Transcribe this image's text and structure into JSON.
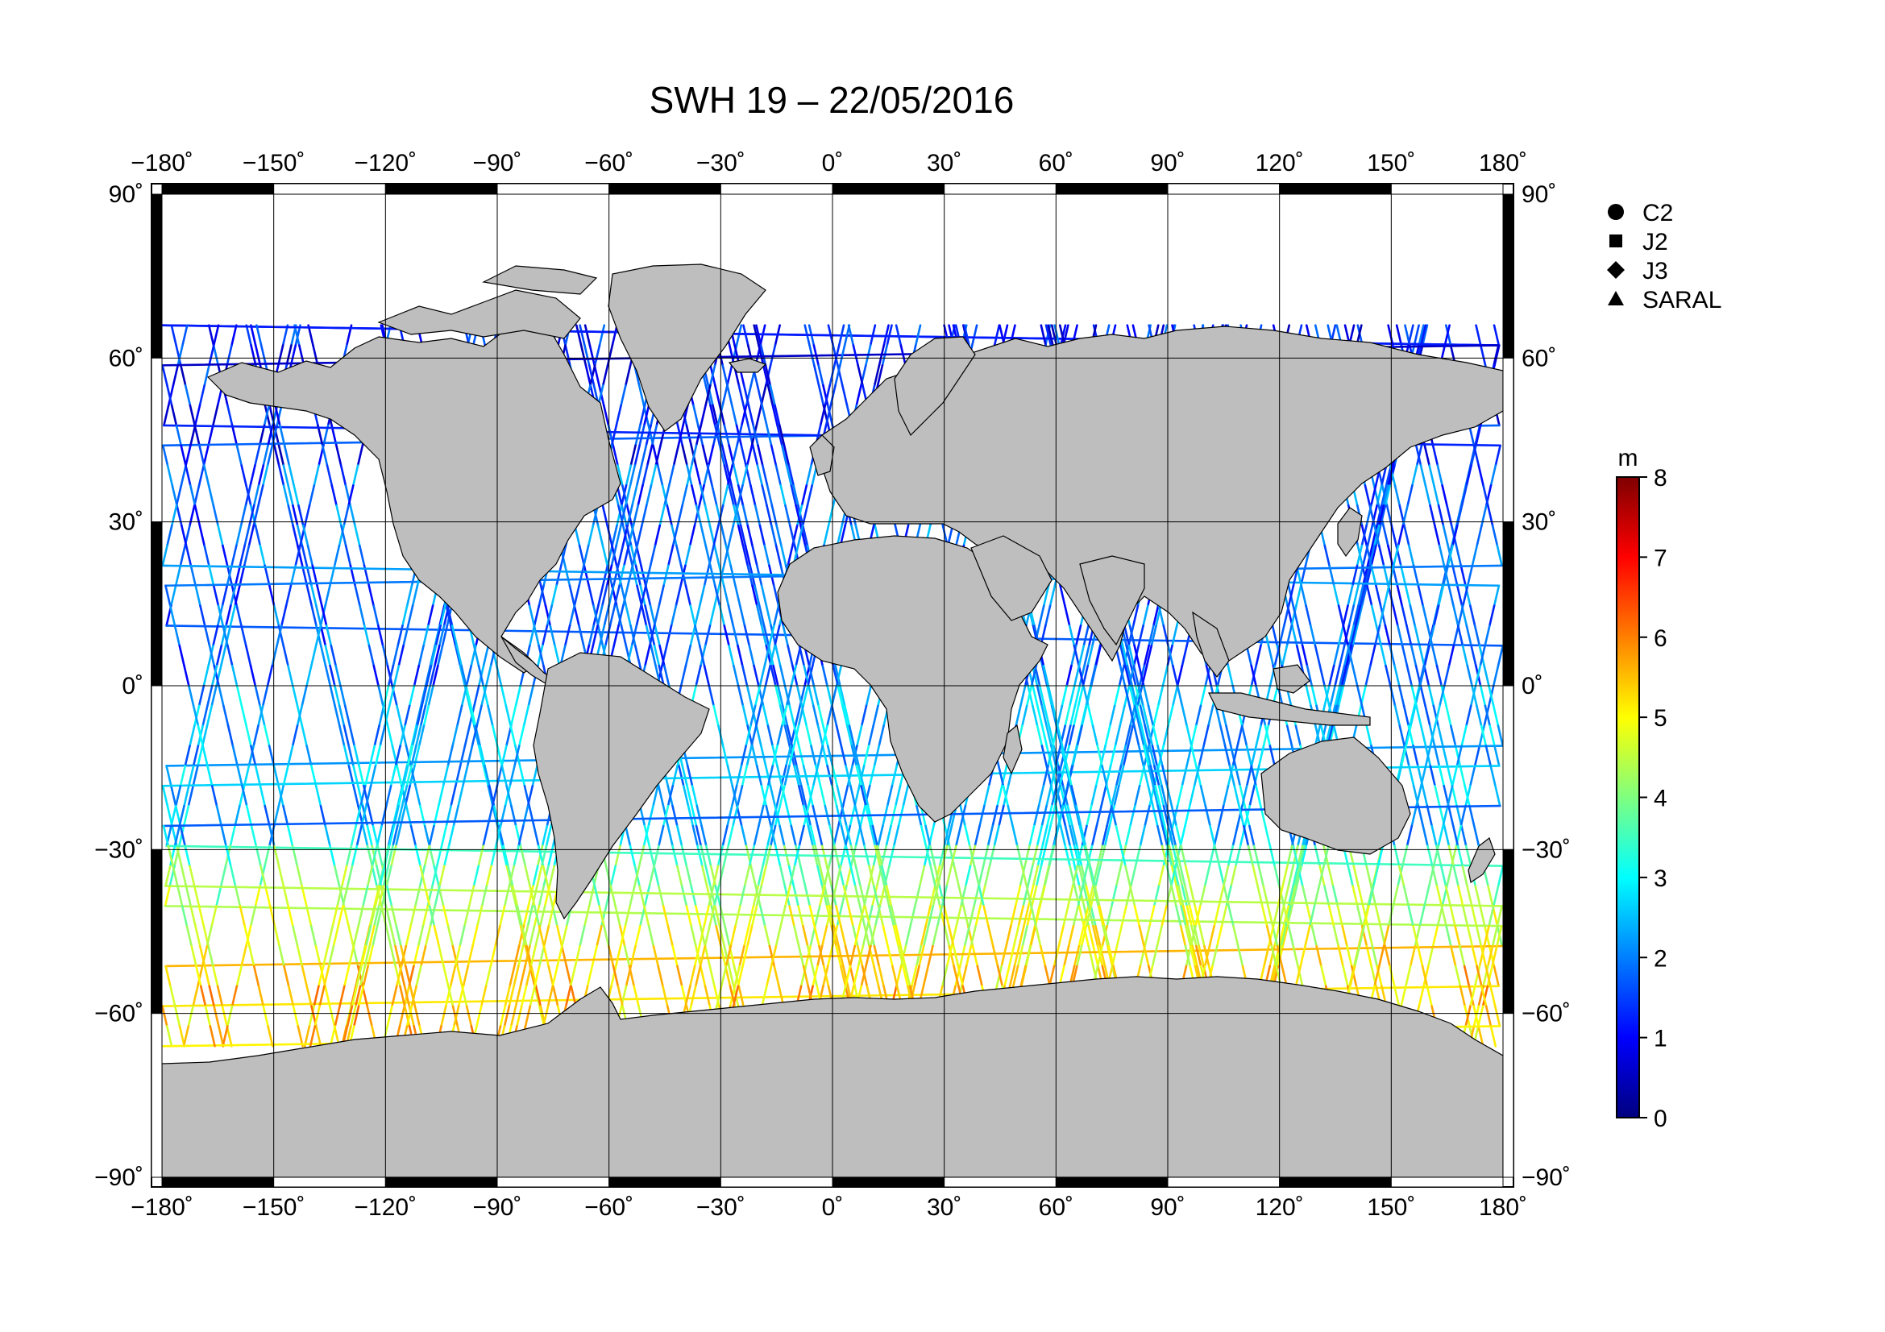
{
  "title": "SWH 19 – 22/05/2016",
  "x_ticks": [
    "−180˚",
    "−150˚",
    "−120˚",
    "−90˚",
    "−60˚",
    "−30˚",
    "0˚",
    "30˚",
    "60˚",
    "90˚",
    "120˚",
    "150˚",
    "180˚"
  ],
  "y_ticks": [
    "90˚",
    "60˚",
    "30˚",
    "0˚",
    "−30˚",
    "−60˚",
    "−90˚"
  ],
  "legend": [
    {
      "label": "C2",
      "marker": "circle"
    },
    {
      "label": "J2",
      "marker": "square"
    },
    {
      "label": "J3",
      "marker": "diamond"
    },
    {
      "label": "SARAL",
      "marker": "triangle"
    }
  ],
  "colorbar": {
    "unit": "m",
    "ticks": [
      "0",
      "1",
      "2",
      "3",
      "4",
      "5",
      "6",
      "7",
      "8"
    ],
    "min": 0,
    "max": 8,
    "colors": [
      "#00007f",
      "#0000ff",
      "#007fff",
      "#00ffff",
      "#7fff7f",
      "#ffff00",
      "#ff7f00",
      "#ff0000",
      "#7f0000"
    ]
  },
  "colors": {
    "land": "#bebebe",
    "coast": "#000000",
    "grid": "#000000",
    "background": "#ffffff"
  }
}
